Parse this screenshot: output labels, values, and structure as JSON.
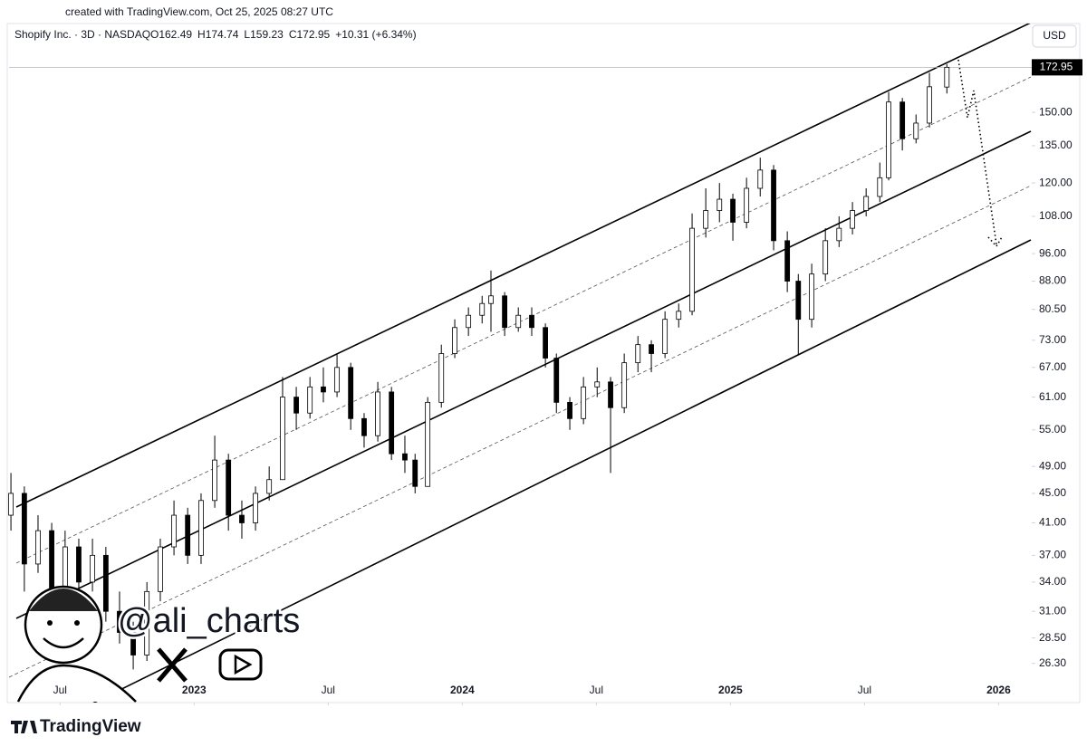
{
  "page": {
    "credit": "created with TradingView.com, Oct 25, 2025 08:27 UTC",
    "currency": "USD",
    "brand": "TradingView",
    "watermark": "@ali_charts"
  },
  "chart_data": {
    "type": "candlestick",
    "title": "Shopify Inc. · 3D · NASDAQ",
    "ohlc_labels": [
      "O162.49",
      "H174.74",
      "L159.23",
      "C172.95",
      "+10.31 (+6.34%)"
    ],
    "log_scale": true,
    "grid": false,
    "up_color": "#ffffff",
    "down_color": "#000000",
    "outline_color": "#000000",
    "x": [
      2022.317,
      2022.367,
      2022.418,
      2022.469,
      2022.519,
      2022.57,
      2022.621,
      2022.671,
      2022.722,
      2022.773,
      2022.824,
      2022.874,
      2022.925,
      2022.976,
      2023.026,
      2023.077,
      2023.128,
      2023.178,
      2023.229,
      2023.28,
      2023.33,
      2023.381,
      2023.432,
      2023.482,
      2023.533,
      2023.584,
      2023.634,
      2023.685,
      2023.736,
      2023.786,
      2023.824,
      2023.871,
      2023.922,
      2023.972,
      2024.023,
      2024.074,
      2024.107,
      2024.158,
      2024.209,
      2024.259,
      2024.31,
      2024.351,
      2024.401,
      2024.452,
      2024.503,
      2024.553,
      2024.604,
      2024.655,
      2024.705,
      2024.756,
      2024.807,
      2024.857,
      2024.908,
      2024.959,
      2025.009,
      2025.06,
      2025.111,
      2025.161,
      2025.212,
      2025.253,
      2025.303,
      2025.354,
      2025.405,
      2025.455,
      2025.506,
      2025.557,
      2025.59,
      2025.641,
      2025.692,
      2025.742,
      2025.807
    ],
    "open": [
      42,
      45,
      36,
      40,
      33,
      38,
      34,
      37,
      31,
      29,
      27,
      33,
      38,
      42,
      37,
      44,
      50,
      42,
      41,
      45,
      47,
      61,
      58,
      63,
      62,
      67,
      57,
      54,
      62,
      51,
      50,
      46,
      60,
      70,
      76,
      79,
      82,
      84,
      76,
      79,
      76,
      69,
      60,
      57,
      63,
      64,
      59,
      68,
      72,
      70,
      78,
      80,
      104,
      110,
      114,
      106,
      118,
      125,
      100,
      88,
      78,
      90,
      100,
      104,
      110,
      115,
      122,
      155,
      138,
      145,
      162.49
    ],
    "high": [
      48,
      46,
      42,
      41,
      40,
      39,
      39,
      38,
      33,
      30,
      34,
      39,
      44,
      43,
      45,
      54,
      51,
      44,
      46,
      49,
      65,
      63,
      65,
      67,
      70,
      68,
      58,
      64,
      63,
      54,
      51,
      61,
      72,
      78,
      81,
      84,
      91,
      85,
      81,
      81,
      77,
      70,
      61,
      65,
      67,
      65,
      70,
      74,
      73,
      80,
      82,
      109,
      118,
      120,
      116,
      122,
      130,
      127,
      103,
      90,
      93,
      104,
      108,
      113,
      118,
      128,
      160,
      157,
      149,
      170,
      174.74
    ],
    "low": [
      40,
      33,
      35,
      31,
      32,
      32,
      33,
      30,
      28,
      25.8,
      26.5,
      32,
      37,
      36,
      36,
      43,
      40,
      39,
      40,
      44,
      47,
      55,
      57,
      60,
      61,
      55,
      52,
      53,
      50,
      48,
      45,
      46,
      59,
      69,
      74,
      77,
      75,
      74,
      75,
      74,
      67,
      58,
      55,
      56,
      61,
      48,
      58,
      66,
      66,
      69,
      76,
      79,
      101,
      106,
      100,
      104,
      115,
      97,
      85,
      69.8,
      76,
      88,
      98,
      102,
      108,
      113,
      121,
      133,
      136,
      143,
      159.23
    ],
    "close": [
      45,
      36,
      40,
      33,
      38,
      34,
      37,
      31,
      29,
      27,
      33,
      38,
      42,
      37,
      44,
      50,
      42,
      41,
      45,
      47,
      61,
      58,
      63,
      62,
      67,
      57,
      54,
      62,
      51,
      50,
      46,
      60,
      70,
      76,
      79,
      82,
      84,
      76,
      79,
      76,
      69,
      60,
      57,
      63,
      64,
      59,
      68,
      72,
      70,
      78,
      80,
      104,
      110,
      114,
      106,
      118,
      125,
      100,
      88,
      78,
      90,
      100,
      104,
      110,
      115,
      122,
      155,
      138,
      145,
      162.64,
      172.95
    ],
    "xlim": [
      2022.31,
      2026.11
    ],
    "xticks": [
      {
        "value": 2022.5,
        "label": "Jul"
      },
      2023,
      {
        "value": 2023.5,
        "label": "Jul"
      },
      2024,
      {
        "value": 2024.5,
        "label": "Jul"
      },
      2025,
      {
        "value": 2025.5,
        "label": "Jul"
      },
      2026
    ],
    "ylim": [
      23.3,
      182.8
    ],
    "yticks": [
      {
        "value": 26.3,
        "label": "26.30"
      },
      {
        "value": 28.5,
        "label": "28.50"
      },
      {
        "value": 31,
        "label": "31.00"
      },
      {
        "value": 34,
        "label": "34.00"
      },
      {
        "value": 37,
        "label": "37.00"
      },
      {
        "value": 41,
        "label": "41.00"
      },
      {
        "value": 45,
        "label": "45.00"
      },
      {
        "value": 49,
        "label": "49.00"
      },
      {
        "value": 55,
        "label": "55.00"
      },
      {
        "value": 61,
        "label": "61.00"
      },
      {
        "value": 67,
        "label": "67.00"
      },
      {
        "value": 73,
        "label": "73.00"
      },
      {
        "value": 80.5,
        "label": "80.50"
      },
      {
        "value": 88,
        "label": "88.00"
      },
      {
        "value": 96,
        "label": "96.00"
      },
      {
        "value": 108,
        "label": "108.00"
      },
      {
        "value": 120,
        "label": "120.00"
      },
      {
        "value": 135,
        "label": "135.00"
      },
      {
        "value": 150,
        "label": "150.00"
      }
    ]
  }
}
